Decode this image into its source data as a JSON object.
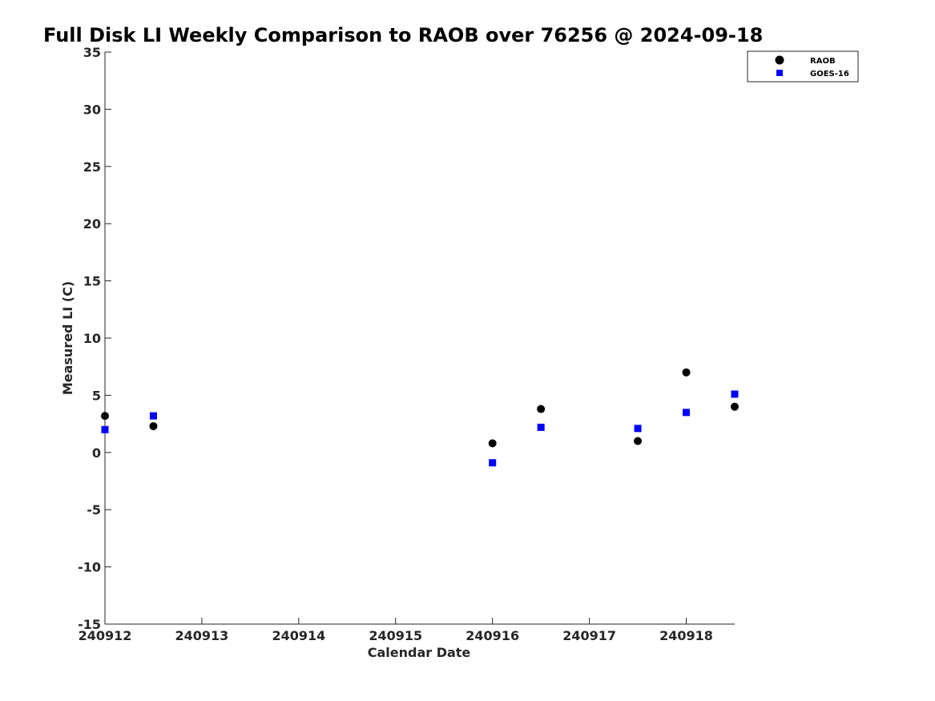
{
  "chart_data": {
    "type": "scatter",
    "title": "Full Disk LI Weekly Comparison to RAOB over 76256 @ 2024-09-18",
    "xlabel": "Calendar Date",
    "ylabel": "Measured LI (C)",
    "xlim": [
      "2024-09-12",
      "2024-09-18 12:00"
    ],
    "ylim": [
      -15,
      35
    ],
    "x_ticks": [
      {
        "date": "2024-09-12",
        "label": "240912"
      },
      {
        "date": "2024-09-13",
        "label": "240913"
      },
      {
        "date": "2024-09-14",
        "label": "240914"
      },
      {
        "date": "2024-09-15",
        "label": "240915"
      },
      {
        "date": "2024-09-16",
        "label": "240916"
      },
      {
        "date": "2024-09-17",
        "label": "240917"
      },
      {
        "date": "2024-09-18",
        "label": "240918"
      }
    ],
    "y_ticks": [
      "35",
      "30",
      "25",
      "20",
      "15",
      "10",
      "5",
      "0",
      "-5",
      "-10",
      "-15"
    ],
    "y_tick_values": [
      35,
      30,
      25,
      20,
      15,
      10,
      5,
      0,
      -5,
      -10,
      -15
    ],
    "grid": false,
    "legend_position": "top-right",
    "series": [
      {
        "name": "RAOB",
        "marker": "circle",
        "color": "#000000",
        "points": [
          {
            "x": "2024-09-12 00:00",
            "y": 3.2
          },
          {
            "x": "2024-09-12 12:00",
            "y": 2.3
          },
          {
            "x": "2024-09-16 00:00",
            "y": 0.8
          },
          {
            "x": "2024-09-16 12:00",
            "y": 3.8
          },
          {
            "x": "2024-09-17 12:00",
            "y": 1.0
          },
          {
            "x": "2024-09-18 00:00",
            "y": 7.0
          },
          {
            "x": "2024-09-18 12:00",
            "y": 4.0
          }
        ]
      },
      {
        "name": "GOES-16",
        "marker": "square",
        "color": "#0000ff",
        "points": [
          {
            "x": "2024-09-12 00:00",
            "y": 2.0
          },
          {
            "x": "2024-09-12 12:00",
            "y": 3.2
          },
          {
            "x": "2024-09-16 00:00",
            "y": -0.9
          },
          {
            "x": "2024-09-16 12:00",
            "y": 2.2
          },
          {
            "x": "2024-09-17 12:00",
            "y": 2.1
          },
          {
            "x": "2024-09-18 00:00",
            "y": 3.5
          },
          {
            "x": "2024-09-18 12:00",
            "y": 5.1
          }
        ]
      }
    ]
  }
}
